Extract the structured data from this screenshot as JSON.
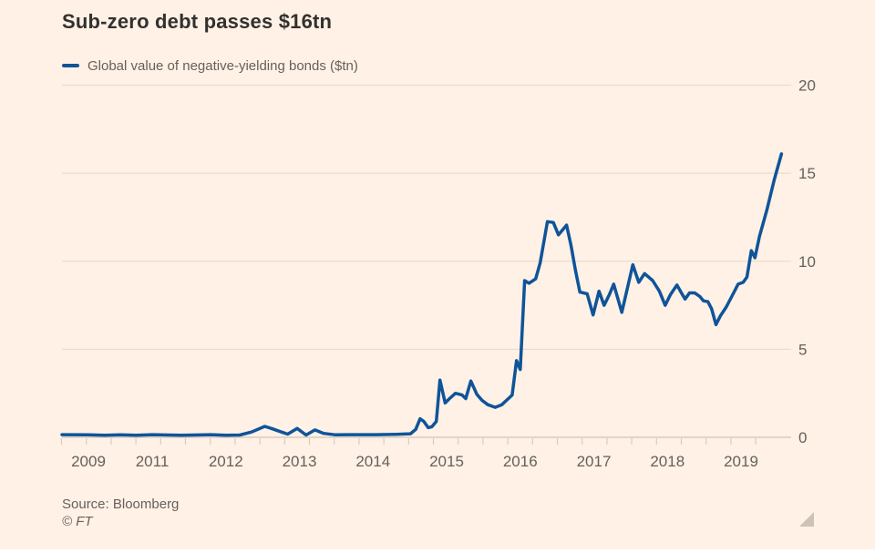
{
  "title": "Sub-zero debt passes $16tn",
  "legend": {
    "label": "Global value of negative-yielding bonds ($tn)",
    "swatch_color": "#0F5499"
  },
  "source": "Source: Bloomberg",
  "copyright": "© FT",
  "colors": {
    "background": "#FFF1E5",
    "line": "#0F5499",
    "title_text": "#33302E",
    "muted_text": "#66605C",
    "gridline": "#E9DDD2",
    "zero_line": "#CFC3B9",
    "tick": "#D8CCC1",
    "resize_handle": "#CCC2B8",
    "bottom_strip": "#FFFFFF"
  },
  "chart_data": {
    "type": "line",
    "title": "Sub-zero debt passes $16tn",
    "series_name": "Global value of negative-yielding bonds ($tn)",
    "unit": "$tn",
    "grid": "horizontal",
    "legend_position": "top-left",
    "ylim": [
      0,
      20
    ],
    "yticks": [
      0,
      5,
      10,
      15,
      20
    ],
    "x_tick_labels": [
      "2009",
      "2011",
      "2012",
      "2013",
      "2014",
      "2015",
      "2016",
      "2017",
      "2018",
      "2019"
    ],
    "points": [
      [
        2008.17,
        0.15
      ],
      [
        2009.0,
        0.14
      ],
      [
        2009.5,
        0.12
      ],
      [
        2010.0,
        0.14
      ],
      [
        2010.5,
        0.12
      ],
      [
        2011.0,
        0.15
      ],
      [
        2011.4,
        0.12
      ],
      [
        2011.8,
        0.15
      ],
      [
        2012.0,
        0.12
      ],
      [
        2012.19,
        0.13
      ],
      [
        2012.35,
        0.3
      ],
      [
        2012.53,
        0.62
      ],
      [
        2012.62,
        0.5
      ],
      [
        2012.72,
        0.35
      ],
      [
        2012.84,
        0.18
      ],
      [
        2012.97,
        0.5
      ],
      [
        2013.09,
        0.13
      ],
      [
        2013.21,
        0.42
      ],
      [
        2013.33,
        0.22
      ],
      [
        2013.49,
        0.14
      ],
      [
        2013.76,
        0.15
      ],
      [
        2014.04,
        0.15
      ],
      [
        2014.32,
        0.17
      ],
      [
        2014.51,
        0.2
      ],
      [
        2014.58,
        0.45
      ],
      [
        2014.64,
        1.05
      ],
      [
        2014.69,
        0.9
      ],
      [
        2014.75,
        0.55
      ],
      [
        2014.8,
        0.6
      ],
      [
        2014.86,
        0.9
      ],
      [
        2014.91,
        3.25
      ],
      [
        2014.98,
        1.95
      ],
      [
        2015.04,
        2.2
      ],
      [
        2015.12,
        2.5
      ],
      [
        2015.21,
        2.4
      ],
      [
        2015.26,
        2.2
      ],
      [
        2015.33,
        3.2
      ],
      [
        2015.41,
        2.45
      ],
      [
        2015.48,
        2.1
      ],
      [
        2015.56,
        1.85
      ],
      [
        2015.66,
        1.7
      ],
      [
        2015.75,
        1.85
      ],
      [
        2015.84,
        2.2
      ],
      [
        2015.89,
        2.4
      ],
      [
        2015.95,
        4.35
      ],
      [
        2016.0,
        3.85
      ],
      [
        2016.06,
        8.9
      ],
      [
        2016.12,
        8.75
      ],
      [
        2016.21,
        9.0
      ],
      [
        2016.27,
        9.9
      ],
      [
        2016.37,
        12.25
      ],
      [
        2016.45,
        12.2
      ],
      [
        2016.52,
        11.5
      ],
      [
        2016.63,
        12.05
      ],
      [
        2016.69,
        10.9
      ],
      [
        2016.75,
        9.5
      ],
      [
        2016.81,
        8.25
      ],
      [
        2016.91,
        8.15
      ],
      [
        2016.99,
        6.95
      ],
      [
        2017.07,
        8.3
      ],
      [
        2017.14,
        7.5
      ],
      [
        2017.21,
        8.1
      ],
      [
        2017.27,
        8.7
      ],
      [
        2017.38,
        7.1
      ],
      [
        2017.53,
        9.8
      ],
      [
        2017.61,
        8.8
      ],
      [
        2017.69,
        9.3
      ],
      [
        2017.8,
        8.9
      ],
      [
        2017.89,
        8.3
      ],
      [
        2017.97,
        7.5
      ],
      [
        2018.04,
        8.1
      ],
      [
        2018.13,
        8.65
      ],
      [
        2018.19,
        8.2
      ],
      [
        2018.24,
        7.85
      ],
      [
        2018.3,
        8.2
      ],
      [
        2018.37,
        8.2
      ],
      [
        2018.44,
        8.0
      ],
      [
        2018.49,
        7.75
      ],
      [
        2018.55,
        7.7
      ],
      [
        2018.6,
        7.3
      ],
      [
        2018.66,
        6.4
      ],
      [
        2018.72,
        6.9
      ],
      [
        2018.8,
        7.4
      ],
      [
        2018.9,
        8.2
      ],
      [
        2018.96,
        8.7
      ],
      [
        2019.03,
        8.8
      ],
      [
        2019.08,
        9.1
      ],
      [
        2019.14,
        10.6
      ],
      [
        2019.19,
        10.2
      ],
      [
        2019.25,
        11.4
      ],
      [
        2019.35,
        12.9
      ],
      [
        2019.45,
        14.6
      ],
      [
        2019.55,
        16.1
      ]
    ]
  }
}
